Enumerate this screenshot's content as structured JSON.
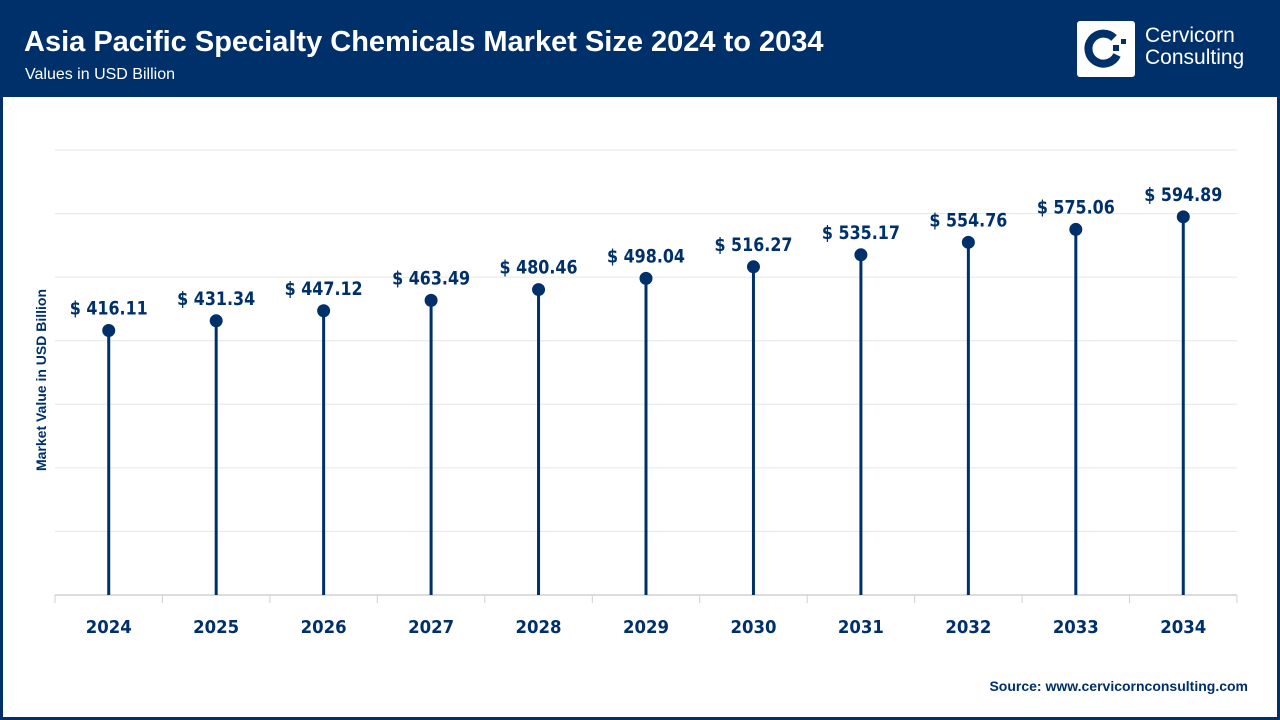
{
  "header": {
    "title": "Asia Pacific Specialty Chemicals Market Size 2024 to 2034",
    "subtitle": "Values in USD Billion",
    "logo_text_line1": "Cervicorn",
    "logo_text_line2": "Consulting"
  },
  "source": "Source: www.cervicornconsulting.com",
  "colors": {
    "brand": "#00306a",
    "grid": "#e6e6e6"
  },
  "chart_data": {
    "type": "lollipop",
    "title": "Asia Pacific Specialty Chemicals Market Size 2024 to 2034",
    "subtitle": "Values in USD Billion",
    "ylabel": "Market Value in USD Billion",
    "xlabel": "",
    "ylim": [
      0,
      700
    ],
    "grid": true,
    "categories": [
      "2024",
      "2025",
      "2026",
      "2027",
      "2028",
      "2029",
      "2030",
      "2031",
      "2032",
      "2033",
      "2034"
    ],
    "values": [
      416.11,
      431.34,
      447.12,
      463.49,
      480.46,
      498.04,
      516.27,
      535.17,
      554.76,
      575.06,
      594.89
    ],
    "labels": [
      "$ 416.11",
      "$ 431.34",
      "$ 447.12",
      "$ 463.49",
      "$ 480.46",
      "$ 498.04",
      "$ 516.27",
      "$ 535.17",
      "$ 554.76",
      "$ 575.06",
      "$ 594.89"
    ]
  }
}
